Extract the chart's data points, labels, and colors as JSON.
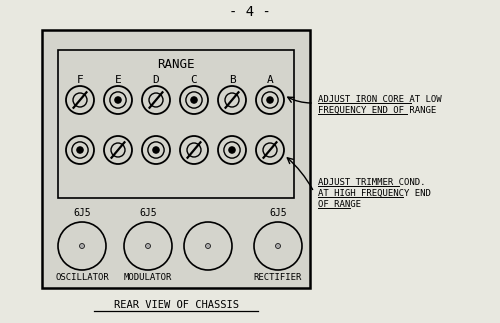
{
  "title_page": "- 4 -",
  "bg_color": "#e8e8e0",
  "chassis_label": "REAR VIEW OF CHASSIS",
  "range_label": "RANGE",
  "range_letters": [
    "F",
    "E",
    "D",
    "C",
    "B",
    "A"
  ],
  "tube_labels": [
    "6J5",
    "6J5",
    "6J5"
  ],
  "tube_names": [
    "OSCILLATOR",
    "MODULATOR",
    "RECTIFIER"
  ],
  "annotation1_lines": [
    "ADJUST IRON CORE AT LOW",
    "FREQUENCY END OF RANGE"
  ],
  "annotation2_lines": [
    "ADJUST TRIMMER COND.",
    "AT HIGH FREQUENCY END",
    "OF RANGE"
  ]
}
